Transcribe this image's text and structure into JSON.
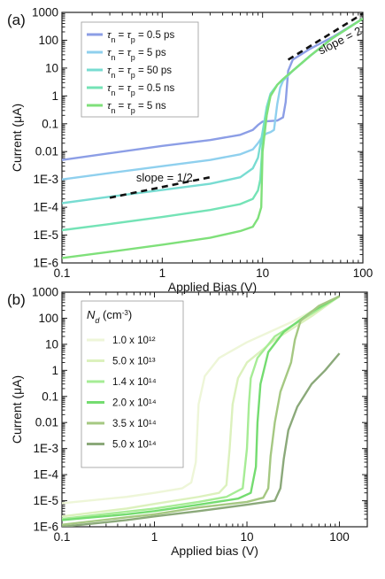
{
  "chart_data": [
    {
      "type": "line",
      "panel_label": "(a)",
      "xlabel": "Applied Bias (V)",
      "ylabel": "Current (μA)",
      "xscale": "log",
      "yscale": "log",
      "xlim": [
        0.1,
        100
      ],
      "ylim": [
        1e-06,
        1000
      ],
      "x_ticks": [
        "0.1",
        "1",
        "10",
        "100"
      ],
      "y_ticks": [
        "1E-6",
        "1E-5",
        "1E-4",
        "1E-3",
        "0.01",
        "0.1",
        "1",
        "10",
        "100",
        "1000"
      ],
      "legend_position": "top-left",
      "series": [
        {
          "name": "τn = τp = 0.5 ps",
          "color": "#8c9ee6",
          "points": [
            [
              0.1,
              0.005
            ],
            [
              0.3,
              0.0087
            ],
            [
              1,
              0.016
            ],
            [
              3,
              0.026
            ],
            [
              6,
              0.04
            ],
            [
              8,
              0.06
            ],
            [
              9,
              0.09
            ],
            [
              10,
              0.12
            ],
            [
              12,
              0.125
            ],
            [
              14,
              0.13
            ],
            [
              16,
              0.17
            ],
            [
              17,
              0.6
            ],
            [
              18,
              8
            ],
            [
              20,
              20
            ],
            [
              30,
              50
            ],
            [
              50,
              130
            ],
            [
              100,
              600
            ]
          ]
        },
        {
          "name": "τn = τp = 5 ps",
          "color": "#8fd0ee",
          "points": [
            [
              0.1,
              0.001
            ],
            [
              0.3,
              0.0017
            ],
            [
              1,
              0.003
            ],
            [
              3,
              0.005
            ],
            [
              6,
              0.008
            ],
            [
              8,
              0.012
            ],
            [
              9,
              0.02
            ],
            [
              10,
              0.035
            ],
            [
              11,
              0.045
            ],
            [
              12,
              0.05
            ],
            [
              13,
              0.06
            ],
            [
              14,
              0.5
            ],
            [
              15,
              2
            ],
            [
              16,
              3.5
            ],
            [
              20,
              8
            ],
            [
              30,
              28
            ],
            [
              50,
              120
            ],
            [
              100,
              600
            ]
          ]
        },
        {
          "name": "τn = τp = 50 ps",
          "color": "#78dcd2",
          "points": [
            [
              0.1,
              0.00014
            ],
            [
              0.3,
              0.00024
            ],
            [
              1,
              0.00042
            ],
            [
              3,
              0.0007
            ],
            [
              6,
              0.0012
            ],
            [
              8,
              0.0025
            ],
            [
              9,
              0.006
            ],
            [
              10,
              0.05
            ],
            [
              11,
              0.4
            ],
            [
              12,
              1.2
            ],
            [
              14,
              2.5
            ],
            [
              16,
              4
            ],
            [
              20,
              8
            ],
            [
              30,
              28
            ],
            [
              50,
              120
            ],
            [
              100,
              600
            ]
          ]
        },
        {
          "name": "τn = τp = 0.5 ns",
          "color": "#74e3b6",
          "points": [
            [
              0.1,
              1.5e-05
            ],
            [
              0.3,
              2.5e-05
            ],
            [
              1,
              4.5e-05
            ],
            [
              3,
              8e-05
            ],
            [
              6,
              0.00013
            ],
            [
              8,
              0.0002
            ],
            [
              9,
              0.0004
            ],
            [
              9.5,
              0.001
            ],
            [
              10,
              0.02
            ],
            [
              11,
              0.3
            ],
            [
              12,
              1
            ],
            [
              14,
              2.5
            ],
            [
              16,
              4
            ],
            [
              20,
              8
            ],
            [
              30,
              28
            ],
            [
              50,
              120
            ],
            [
              100,
              600
            ]
          ]
        },
        {
          "name": "τn = τp = 5 ns",
          "color": "#7fe07a",
          "points": [
            [
              0.1,
              1.5e-06
            ],
            [
              0.3,
              2.5e-06
            ],
            [
              1,
              4.5e-06
            ],
            [
              3,
              8e-06
            ],
            [
              6,
              1.4e-05
            ],
            [
              8,
              2e-05
            ],
            [
              9,
              4e-05
            ],
            [
              9.7,
              0.0001
            ],
            [
              10,
              0.01
            ],
            [
              11,
              0.2
            ],
            [
              12,
              1
            ],
            [
              14,
              2.5
            ],
            [
              16,
              4
            ],
            [
              20,
              8
            ],
            [
              30,
              28
            ],
            [
              50,
              120
            ],
            [
              100,
              600
            ]
          ]
        }
      ],
      "annotations": [
        {
          "text": "slope = 1/2",
          "x": 0.55,
          "y": 0.00085
        },
        {
          "text": "slope = 2",
          "x": 38,
          "y": 30
        }
      ],
      "slope_lines": [
        {
          "points": [
            [
              0.3,
              0.00022
            ],
            [
              3,
              0.0012
            ]
          ],
          "style": "dashed"
        },
        {
          "points": [
            [
              18,
              20
            ],
            [
              100,
              900
            ]
          ],
          "style": "dashed"
        }
      ]
    },
    {
      "type": "line",
      "panel_label": "(b)",
      "xlabel": "Applied bias (V)",
      "ylabel": "Current (μA)",
      "xscale": "log",
      "yscale": "log",
      "xlim": [
        0.1,
        200
      ],
      "ylim": [
        1e-06,
        1000
      ],
      "x_ticks": [
        "0.1",
        "1",
        "10",
        "100"
      ],
      "y_ticks": [
        "1E-6",
        "1E-5",
        "1E-4",
        "1E-3",
        "0.01",
        "0.1",
        "1",
        "10",
        "100",
        "1000"
      ],
      "legend_title": "Nd (cm⁻³)",
      "legend_position": "top-left",
      "series": [
        {
          "name": "1.0 x 10¹²",
          "color": "#eef6d8",
          "points": [
            [
              0.1,
              8e-06
            ],
            [
              0.5,
              1.4e-05
            ],
            [
              1,
              2e-05
            ],
            [
              2,
              3e-05
            ],
            [
              2.5,
              5e-05
            ],
            [
              2.8,
              0.0003
            ],
            [
              3,
              0.05
            ],
            [
              3.5,
              0.6
            ],
            [
              5,
              3
            ],
            [
              10,
              12
            ],
            [
              30,
              70
            ],
            [
              100,
              700
            ]
          ]
        },
        {
          "name": "5.0 x 10¹³",
          "color": "#dcf1bd",
          "points": [
            [
              0.1,
              2.5e-06
            ],
            [
              0.5,
              5e-06
            ],
            [
              1,
              7.5e-06
            ],
            [
              3,
              1.4e-05
            ],
            [
              5,
              2e-05
            ],
            [
              6,
              4e-05
            ],
            [
              6.5,
              0.001
            ],
            [
              7,
              0.05
            ],
            [
              8,
              0.5
            ],
            [
              10,
              2
            ],
            [
              20,
              15
            ],
            [
              50,
              120
            ],
            [
              100,
              700
            ]
          ]
        },
        {
          "name": "1.4 x 10¹⁴",
          "color": "#a6ec95",
          "points": [
            [
              0.1,
              2e-06
            ],
            [
              0.5,
              3.8e-06
            ],
            [
              1,
              5e-06
            ],
            [
              3,
              9e-06
            ],
            [
              6,
              1.4e-05
            ],
            [
              9,
              3e-05
            ],
            [
              10,
              0.001
            ],
            [
              10.5,
              0.05
            ],
            [
              11,
              0.5
            ],
            [
              13,
              3
            ],
            [
              20,
              20
            ],
            [
              50,
              150
            ],
            [
              100,
              700
            ]
          ]
        },
        {
          "name": "2.0 x 10¹⁴",
          "color": "#74dc70",
          "points": [
            [
              0.1,
              1.8e-06
            ],
            [
              0.5,
              3e-06
            ],
            [
              1,
              4e-06
            ],
            [
              3,
              7e-06
            ],
            [
              8,
              1.2e-05
            ],
            [
              11,
              2e-05
            ],
            [
              12.5,
              0.0002
            ],
            [
              13,
              0.01
            ],
            [
              14,
              0.3
            ],
            [
              17,
              5
            ],
            [
              25,
              30
            ],
            [
              50,
              180
            ],
            [
              100,
              700
            ]
          ]
        },
        {
          "name": "3.5 x 10¹⁴",
          "color": "#a5c882",
          "points": [
            [
              0.1,
              1.2e-06
            ],
            [
              0.5,
              2.3e-06
            ],
            [
              1,
              3e-06
            ],
            [
              3,
              5.5e-06
            ],
            [
              10,
              9e-06
            ],
            [
              15,
              1.3e-05
            ],
            [
              17,
              3e-05
            ],
            [
              18,
              0.0005
            ],
            [
              20,
              0.01
            ],
            [
              23,
              0.15
            ],
            [
              30,
              2
            ],
            [
              33,
              15
            ],
            [
              38,
              80
            ],
            [
              60,
              300
            ],
            [
              100,
              700
            ]
          ]
        },
        {
          "name": "5.0 x 10¹⁴",
          "color": "#8ba97a",
          "points": [
            [
              0.1,
              1e-06
            ],
            [
              0.5,
              1.8e-06
            ],
            [
              1,
              2.5e-06
            ],
            [
              3,
              4e-06
            ],
            [
              10,
              7e-06
            ],
            [
              20,
              1e-05
            ],
            [
              23,
              3e-05
            ],
            [
              25,
              0.0004
            ],
            [
              28,
              0.005
            ],
            [
              35,
              0.04
            ],
            [
              50,
              0.3
            ],
            [
              70,
              1
            ],
            [
              100,
              4.5
            ]
          ]
        }
      ]
    }
  ]
}
